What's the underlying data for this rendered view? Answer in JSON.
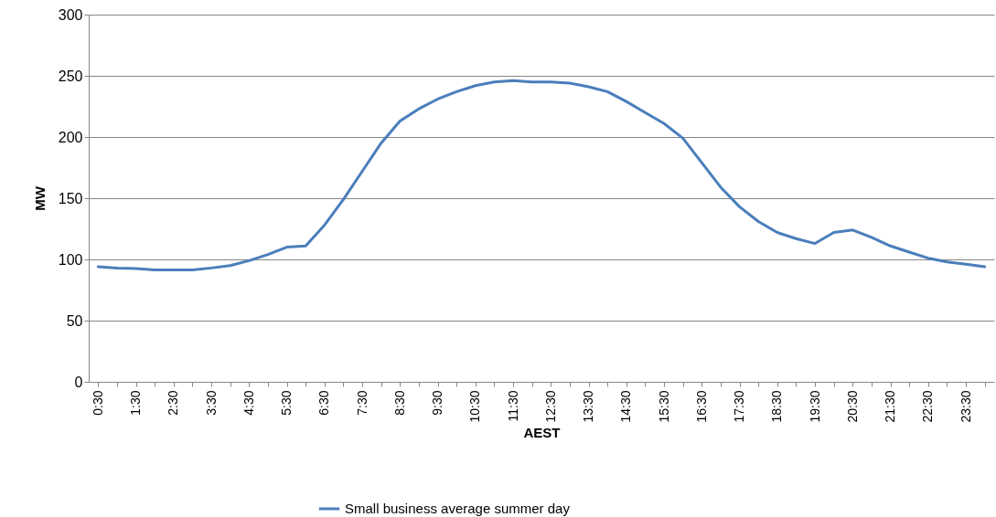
{
  "chart_data": {
    "type": "line",
    "xlabel": "AEST",
    "ylabel": "MW",
    "categories": [
      "0:30",
      null,
      "1:30",
      null,
      "2:30",
      null,
      "3:30",
      null,
      "4:30",
      null,
      "5:30",
      null,
      "6:30",
      null,
      "7:30",
      null,
      "8:30",
      null,
      "9:30",
      null,
      "10:30",
      null,
      "11:30",
      null,
      "12:30",
      null,
      "13:30",
      null,
      "14:30",
      null,
      "15:30",
      null,
      "16:30",
      null,
      "17:30",
      null,
      "18:30",
      null,
      "19:30",
      null,
      "20:30",
      null,
      "21:30",
      null,
      "22:30",
      null,
      "23:30",
      null
    ],
    "series": [
      {
        "name": "Small business average summer day",
        "color": "#4a7ebb",
        "values": [
          94,
          93,
          92.5,
          91.5,
          91.5,
          91.5,
          93,
          95,
          99,
          104,
          110,
          111,
          128,
          149,
          172,
          195,
          213,
          223,
          231,
          237,
          242,
          245,
          246,
          245,
          245,
          244,
          241,
          237,
          229,
          220,
          211,
          199,
          179,
          159,
          143,
          131,
          122,
          117,
          113,
          122,
          124,
          118,
          111,
          106,
          101,
          98,
          96,
          94
        ]
      }
    ],
    "ylim": [
      0,
      300
    ],
    "yticks": [
      0,
      50,
      100,
      150,
      200,
      250,
      300
    ],
    "grid": "y",
    "legend": "bottom",
    "marker": "none",
    "line_style": "solid"
  }
}
